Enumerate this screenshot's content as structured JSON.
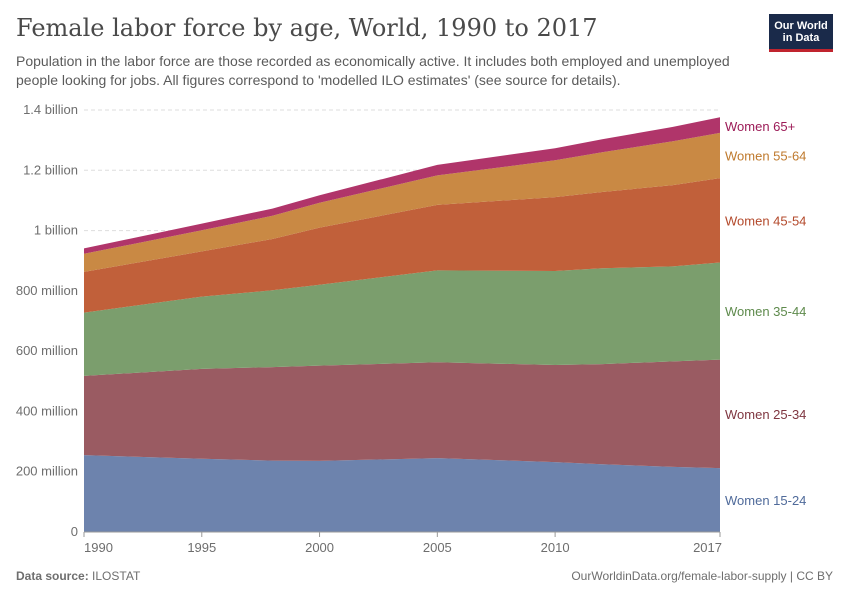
{
  "header": {
    "title": "Female labor force by age, World, 1990 to 2017",
    "subtitle": "Population in the labor force are those recorded as economically active. It includes both employed and unemployed people looking for jobs. All figures correspond to 'modelled ILO estimates' (see source for details).",
    "logo_line1": "Our World",
    "logo_line2": "in Data"
  },
  "footer": {
    "source_label": "Data source:",
    "source_value": "ILOSTAT",
    "url": "OurWorldinData.org/female-labor-supply | CC BY"
  },
  "chart_data": {
    "type": "area",
    "stacked": true,
    "x": [
      1990,
      1995,
      1998,
      2000,
      2005,
      2010,
      2012,
      2015,
      2017
    ],
    "series": [
      {
        "name": "Women 15-24",
        "color": "#6d83ad",
        "values": [
          255,
          243,
          237,
          236,
          245,
          232,
          225,
          216,
          212
        ]
      },
      {
        "name": "Women 25-34",
        "color": "#9a5b62",
        "values": [
          263,
          298,
          310,
          316,
          318,
          322,
          332,
          350,
          360
        ]
      },
      {
        "name": "Women 35-44",
        "color": "#7b9e6d",
        "values": [
          210,
          240,
          255,
          268,
          305,
          312,
          318,
          315,
          322
        ]
      },
      {
        "name": "Women 45-54",
        "color": "#c1603a",
        "values": [
          135,
          150,
          170,
          190,
          217,
          245,
          253,
          270,
          280
        ]
      },
      {
        "name": "Women 55-64",
        "color": "#c98944",
        "values": [
          60,
          70,
          77,
          82,
          98,
          122,
          132,
          145,
          150
        ]
      },
      {
        "name": "Women 65+",
        "color": "#b0356a",
        "values": [
          18,
          22,
          24,
          25,
          35,
          40,
          43,
          48,
          52
        ]
      }
    ],
    "legend_text_colors": [
      "#4f6a9a",
      "#7f3640",
      "#5e8a4c",
      "#b3492b",
      "#bf7a2e",
      "#9c1b57"
    ],
    "y_ticks": [
      {
        "value": 0,
        "label": "0"
      },
      {
        "value": 200,
        "label": "200 million"
      },
      {
        "value": 400,
        "label": "400 million"
      },
      {
        "value": 600,
        "label": "600 million"
      },
      {
        "value": 800,
        "label": "800 million"
      },
      {
        "value": 1000,
        "label": "1 billion"
      },
      {
        "value": 1200,
        "label": "1.2 billion"
      },
      {
        "value": 1400,
        "label": "1.4 billion"
      }
    ],
    "x_ticks": [
      1990,
      1995,
      2000,
      2005,
      2010,
      2017
    ],
    "ylim": [
      0,
      1400
    ],
    "xlim": [
      1990,
      2017
    ],
    "grid": true,
    "legend_placement": "right"
  }
}
